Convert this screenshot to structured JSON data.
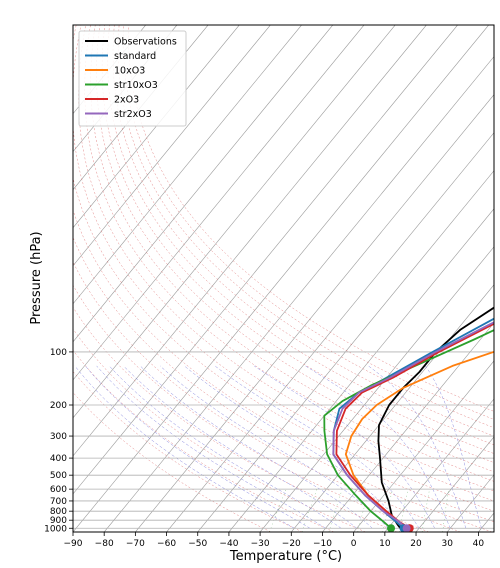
{
  "chart_data": {
    "type": "line",
    "subtype": "skew-T log-P diagram",
    "title": "",
    "xlabel": "Temperature (°C)",
    "ylabel": "Pressure (hPa)",
    "xlim": [
      -90,
      45
    ],
    "ylim_hpa": [
      1050,
      1.4
    ],
    "y_scale": "log",
    "x_ticks": [
      -90,
      -80,
      -70,
      -60,
      -50,
      -40,
      -30,
      -20,
      -10,
      0,
      10,
      20,
      30,
      40
    ],
    "y_ticks": [
      1000,
      900,
      800,
      700,
      600,
      500,
      400,
      300,
      200,
      100
    ],
    "grid": true,
    "background_lines": [
      "skewed isotherms",
      "dry adiabats",
      "moist adiabats",
      "mixing ratio lines"
    ],
    "legend_position": "top-left",
    "series": [
      {
        "name": "Observations",
        "color": "#000000",
        "points": [
          [
            14,
            1000
          ],
          [
            12,
            950
          ],
          [
            8,
            850
          ],
          [
            3,
            700
          ],
          [
            -4,
            550
          ],
          [
            -11,
            400
          ],
          [
            -16,
            320
          ],
          [
            -20,
            260
          ],
          [
            -22,
            200
          ],
          [
            -22,
            160
          ],
          [
            -21,
            130
          ],
          [
            -21,
            100
          ],
          [
            -19,
            75
          ],
          [
            -12,
            50
          ],
          [
            0,
            30
          ],
          [
            15,
            15
          ],
          [
            30,
            7
          ],
          [
            45,
            3
          ]
        ]
      },
      {
        "name": "standard",
        "color": "#1f77b4",
        "points": [
          [
            15,
            1000
          ],
          [
            11,
            920
          ],
          [
            4,
            800
          ],
          [
            -6,
            650
          ],
          [
            -17,
            500
          ],
          [
            -27,
            380
          ],
          [
            -33,
            280
          ],
          [
            -37,
            210
          ],
          [
            -35,
            170
          ],
          [
            -30,
            140
          ],
          [
            -22,
            100
          ],
          [
            -13,
            70
          ],
          [
            -2,
            45
          ],
          [
            12,
            25
          ],
          [
            26,
            12
          ],
          [
            40,
            5
          ]
        ]
      },
      {
        "name": "10xO3",
        "color": "#ff7f0e",
        "points": [
          [
            16,
            1000
          ],
          [
            12,
            920
          ],
          [
            5,
            800
          ],
          [
            -5,
            650
          ],
          [
            -15,
            500
          ],
          [
            -23,
            380
          ],
          [
            -26,
            300
          ],
          [
            -27,
            240
          ],
          [
            -26,
            200
          ],
          [
            -22,
            160
          ],
          [
            -12,
            120
          ],
          [
            3,
            90
          ],
          [
            18,
            65
          ],
          [
            30,
            45
          ],
          [
            42,
            28
          ]
        ]
      },
      {
        "name": "str10xO3",
        "color": "#2ca02c",
        "points": [
          [
            11,
            1000
          ],
          [
            7,
            920
          ],
          [
            0,
            800
          ],
          [
            -9,
            650
          ],
          [
            -20,
            500
          ],
          [
            -29,
            380
          ],
          [
            -36,
            280
          ],
          [
            -40,
            230
          ],
          [
            -38,
            190
          ],
          [
            -33,
            155
          ],
          [
            -24,
            120
          ],
          [
            -12,
            85
          ],
          [
            2,
            55
          ],
          [
            18,
            30
          ],
          [
            28,
            20
          ],
          [
            40,
            14
          ]
        ]
      },
      {
        "name": "2xO3",
        "color": "#d62728",
        "points": [
          [
            17,
            1000
          ],
          [
            12,
            920
          ],
          [
            5,
            800
          ],
          [
            -5,
            650
          ],
          [
            -16,
            500
          ],
          [
            -26,
            380
          ],
          [
            -32,
            280
          ],
          [
            -35,
            210
          ],
          [
            -34,
            170
          ],
          [
            -28,
            140
          ],
          [
            -20,
            100
          ],
          [
            -10,
            70
          ],
          [
            2,
            45
          ],
          [
            15,
            25
          ],
          [
            28,
            12
          ],
          [
            38,
            5
          ]
        ]
      },
      {
        "name": "str2xO3",
        "color": "#9467bd",
        "points": [
          [
            16,
            1000
          ],
          [
            12,
            920
          ],
          [
            4,
            800
          ],
          [
            -6,
            650
          ],
          [
            -17,
            500
          ],
          [
            -27,
            380
          ],
          [
            -33,
            280
          ],
          [
            -36,
            210
          ],
          [
            -35,
            170
          ],
          [
            -29,
            140
          ],
          [
            -21,
            100
          ],
          [
            -11,
            70
          ],
          [
            1,
            45
          ],
          [
            14,
            25
          ],
          [
            28,
            12
          ],
          [
            38,
            5
          ]
        ]
      }
    ],
    "surface_markers": [
      {
        "series": "str10xO3",
        "temperature": 11,
        "pressure": 1000,
        "color": "#2ca02c"
      },
      {
        "series": "standard",
        "temperature": 15,
        "pressure": 1000,
        "color": "#1f77b4"
      },
      {
        "series": "2xO3",
        "temperature": 17,
        "pressure": 1000,
        "color": "#d62728"
      },
      {
        "series": "str2xO3",
        "temperature": 16,
        "pressure": 1000,
        "color": "#9467bd"
      }
    ]
  }
}
